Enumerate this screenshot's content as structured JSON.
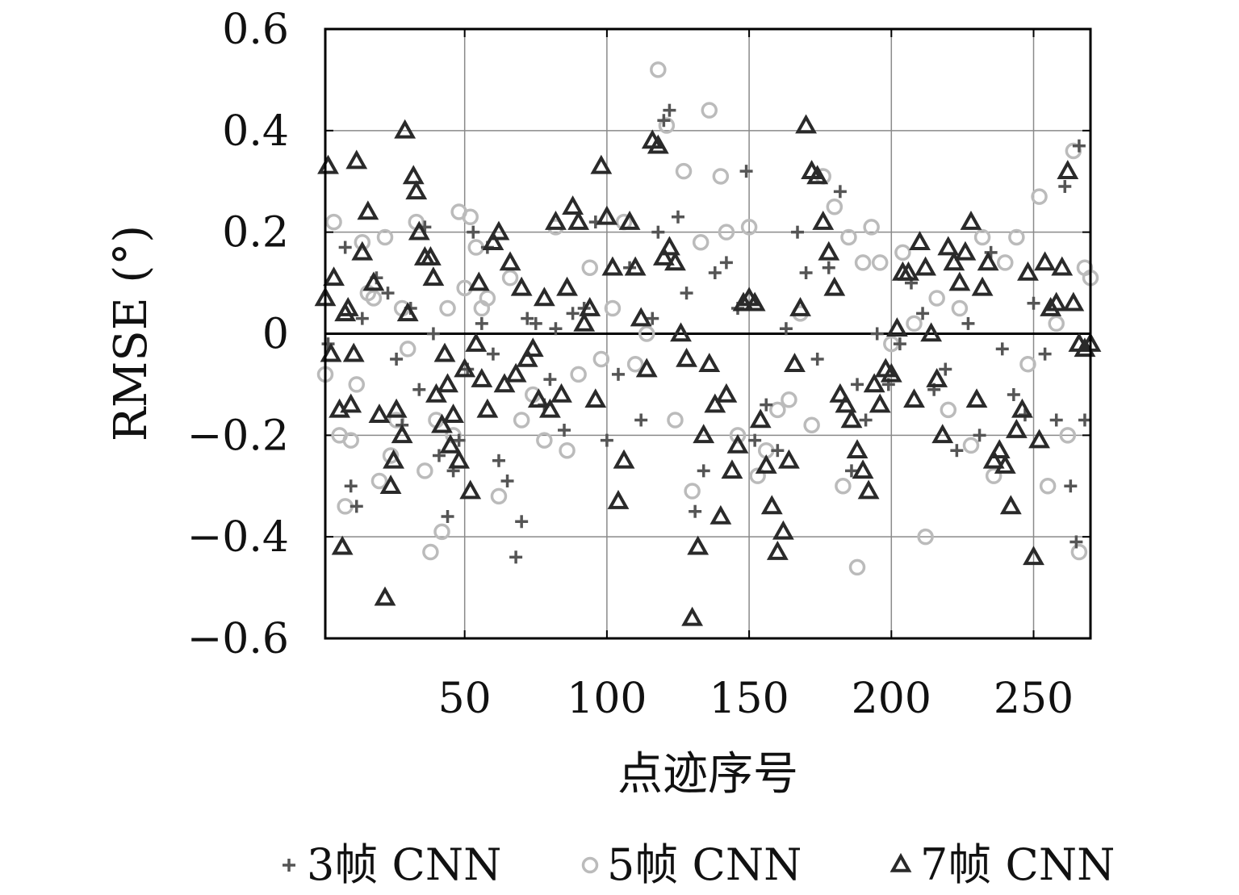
{
  "chart_data": {
    "type": "scatter",
    "xlabel": "点迹序号",
    "ylabel": "RMSE (°)",
    "xlim": [
      1,
      270
    ],
    "ylim": [
      -0.6,
      0.6
    ],
    "xticks": [
      50,
      100,
      150,
      200,
      250
    ],
    "yticks": [
      -0.6,
      -0.4,
      -0.2,
      0,
      0.2,
      0.4,
      0.6
    ],
    "ytick_labels": [
      "−0.6",
      "−0.4",
      "−0.2",
      "0",
      "0.2",
      "0.4",
      "0.6"
    ],
    "xtick_labels": [
      "50",
      "100",
      "150",
      "200",
      "250"
    ],
    "grid": true,
    "zero_line": true,
    "legend_position": "bottom",
    "series": [
      {
        "name": "3帧 CNN",
        "marker": "plus",
        "color": "#555555",
        "x": [
          2,
          8,
          10,
          12,
          14,
          19,
          23,
          26,
          28,
          31,
          34,
          36,
          39,
          41,
          44,
          46,
          48,
          51,
          53,
          56,
          58,
          60,
          62,
          65,
          68,
          70,
          72,
          75,
          78,
          80,
          82,
          85,
          88,
          92,
          96,
          100,
          104,
          108,
          112,
          116,
          118,
          120,
          122,
          125,
          128,
          131,
          134,
          138,
          142,
          146,
          149,
          152,
          156,
          160,
          163,
          167,
          170,
          174,
          178,
          182,
          186,
          188,
          191,
          195,
          199,
          203,
          207,
          211,
          215,
          219,
          223,
          227,
          231,
          235,
          239,
          243,
          247,
          250,
          254,
          258,
          261,
          263,
          265,
          266,
          268
        ],
        "y": [
          -0.02,
          0.17,
          -0.3,
          -0.34,
          0.03,
          0.11,
          0.08,
          -0.05,
          -0.18,
          0.05,
          -0.11,
          0.21,
          0.0,
          -0.24,
          -0.36,
          -0.27,
          -0.21,
          -0.07,
          0.2,
          0.02,
          0.17,
          -0.04,
          -0.25,
          -0.29,
          -0.44,
          -0.37,
          0.03,
          0.02,
          -0.14,
          -0.09,
          0.01,
          -0.19,
          0.04,
          0.05,
          0.22,
          -0.21,
          -0.08,
          0.13,
          -0.17,
          0.03,
          0.2,
          0.42,
          0.44,
          0.23,
          0.08,
          -0.35,
          -0.27,
          0.12,
          0.14,
          0.05,
          0.32,
          -0.21,
          -0.14,
          -0.23,
          0.01,
          0.2,
          0.12,
          -0.05,
          0.13,
          0.28,
          -0.27,
          -0.1,
          -0.17,
          0.0,
          -0.1,
          -0.02,
          0.1,
          0.04,
          -0.11,
          -0.07,
          -0.23,
          0.02,
          -0.2,
          0.16,
          -0.03,
          -0.12,
          -0.16,
          0.06,
          -0.04,
          -0.17,
          0.29,
          -0.3,
          -0.41,
          0.37,
          -0.17
        ]
      },
      {
        "name": "5帧 CNN",
        "marker": "circle",
        "color": "#bbbbbb",
        "x": [
          1,
          4,
          6,
          8,
          10,
          12,
          14,
          16,
          18,
          20,
          22,
          24,
          26,
          28,
          30,
          33,
          36,
          38,
          40,
          42,
          44,
          46,
          48,
          50,
          52,
          54,
          56,
          58,
          62,
          66,
          70,
          74,
          78,
          82,
          86,
          90,
          94,
          98,
          102,
          106,
          110,
          114,
          118,
          121,
          124,
          127,
          130,
          133,
          136,
          140,
          142,
          146,
          150,
          153,
          156,
          160,
          164,
          168,
          172,
          176,
          180,
          183,
          185,
          188,
          190,
          193,
          196,
          200,
          204,
          208,
          212,
          216,
          220,
          224,
          228,
          232,
          236,
          240,
          244,
          248,
          252,
          255,
          258,
          262,
          264,
          266,
          268,
          270
        ],
        "y": [
          -0.08,
          0.22,
          -0.2,
          -0.34,
          -0.21,
          -0.1,
          0.18,
          0.08,
          0.07,
          -0.29,
          0.19,
          -0.24,
          -0.17,
          0.05,
          -0.03,
          0.22,
          -0.27,
          -0.43,
          -0.17,
          -0.39,
          0.05,
          -0.2,
          0.24,
          0.09,
          0.23,
          0.17,
          0.05,
          0.07,
          -0.32,
          0.11,
          -0.17,
          -0.12,
          -0.21,
          0.21,
          -0.23,
          -0.08,
          0.13,
          -0.05,
          0.05,
          0.22,
          -0.06,
          0.0,
          0.52,
          0.41,
          -0.17,
          0.32,
          -0.31,
          0.18,
          0.44,
          0.31,
          0.2,
          -0.2,
          0.21,
          -0.28,
          -0.23,
          -0.15,
          -0.13,
          0.04,
          -0.18,
          0.31,
          0.25,
          -0.3,
          0.19,
          -0.46,
          0.14,
          0.21,
          0.14,
          -0.02,
          0.16,
          0.02,
          -0.4,
          0.07,
          -0.15,
          0.05,
          -0.22,
          0.19,
          -0.28,
          0.14,
          0.19,
          -0.06,
          0.27,
          -0.3,
          0.02,
          -0.2,
          0.36,
          -0.43,
          0.13,
          0.11
        ]
      },
      {
        "name": "7帧 CNN",
        "marker": "triangle",
        "color": "#2a2a2a",
        "x": [
          1,
          2,
          3,
          4,
          6,
          7,
          8,
          9,
          10,
          11,
          12,
          14,
          16,
          18,
          20,
          22,
          24,
          25,
          26,
          28,
          29,
          30,
          32,
          33,
          34,
          36,
          38,
          39,
          40,
          42,
          43,
          44,
          45,
          46,
          48,
          50,
          52,
          54,
          55,
          56,
          58,
          60,
          62,
          64,
          66,
          68,
          70,
          72,
          74,
          76,
          78,
          80,
          82,
          84,
          86,
          88,
          90,
          92,
          94,
          96,
          98,
          100,
          102,
          104,
          106,
          108,
          110,
          112,
          114,
          116,
          118,
          120,
          122,
          124,
          126,
          128,
          130,
          132,
          134,
          136,
          138,
          140,
          142,
          144,
          146,
          148,
          150,
          152,
          154,
          156,
          158,
          160,
          162,
          164,
          166,
          168,
          170,
          172,
          174,
          176,
          178,
          180,
          182,
          184,
          186,
          188,
          190,
          192,
          194,
          196,
          198,
          200,
          202,
          204,
          206,
          208,
          210,
          212,
          214,
          216,
          218,
          220,
          222,
          224,
          226,
          228,
          230,
          232,
          234,
          236,
          238,
          240,
          242,
          244,
          246,
          248,
          250,
          252,
          254,
          256,
          258,
          260,
          262,
          264,
          266,
          268,
          270
        ],
        "y": [
          0.07,
          0.33,
          -0.04,
          0.11,
          -0.15,
          -0.42,
          0.04,
          0.05,
          -0.14,
          -0.04,
          0.34,
          0.16,
          0.24,
          0.1,
          -0.16,
          -0.52,
          -0.3,
          -0.25,
          -0.15,
          -0.2,
          0.4,
          0.04,
          0.31,
          0.28,
          0.2,
          0.15,
          0.15,
          0.11,
          -0.12,
          -0.18,
          -0.04,
          -0.1,
          -0.22,
          -0.16,
          -0.25,
          -0.07,
          -0.31,
          -0.02,
          0.1,
          -0.09,
          -0.15,
          0.18,
          0.2,
          -0.1,
          0.14,
          -0.08,
          0.09,
          -0.05,
          -0.03,
          -0.13,
          0.07,
          -0.15,
          0.22,
          -0.12,
          0.09,
          0.25,
          0.22,
          0.02,
          0.05,
          -0.13,
          0.33,
          0.23,
          0.13,
          -0.33,
          -0.25,
          0.22,
          0.13,
          0.03,
          -0.07,
          0.38,
          0.37,
          0.15,
          0.17,
          0.14,
          0.0,
          -0.05,
          -0.56,
          -0.42,
          -0.2,
          -0.06,
          -0.14,
          -0.36,
          -0.12,
          -0.27,
          -0.22,
          0.06,
          0.07,
          0.06,
          -0.17,
          -0.26,
          -0.34,
          -0.43,
          -0.39,
          -0.25,
          -0.06,
          0.05,
          0.41,
          0.32,
          0.31,
          0.22,
          0.16,
          0.09,
          -0.12,
          -0.14,
          -0.17,
          -0.23,
          -0.27,
          -0.31,
          -0.1,
          -0.14,
          -0.07,
          -0.08,
          0.01,
          0.12,
          0.12,
          -0.13,
          0.18,
          0.13,
          0.0,
          -0.09,
          -0.2,
          0.17,
          0.14,
          0.1,
          0.16,
          0.22,
          -0.13,
          0.09,
          0.14,
          -0.25,
          -0.23,
          -0.26,
          -0.34,
          -0.19,
          -0.15,
          0.12,
          -0.44,
          -0.21,
          0.14,
          0.05,
          0.06,
          0.13,
          0.32,
          0.06,
          -0.02,
          -0.03,
          -0.02
        ]
      }
    ]
  }
}
